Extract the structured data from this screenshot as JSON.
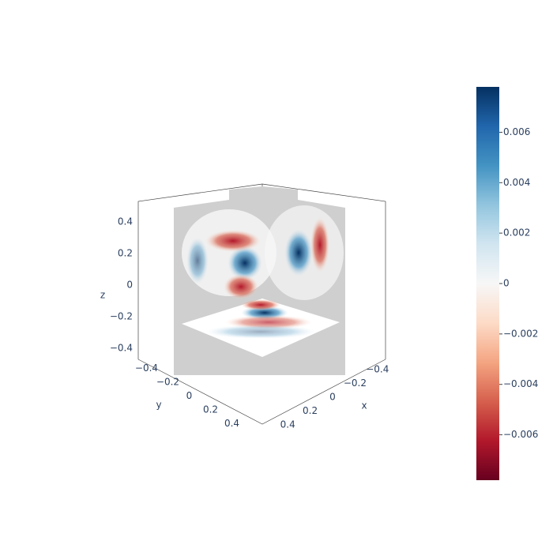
{
  "chart_data": {
    "type": "volume-slices",
    "x_label": "x",
    "y_label": "y",
    "z_label": "z",
    "xlim": [
      -0.5,
      0.5
    ],
    "ylim": [
      -0.5,
      0.5
    ],
    "zlim": [
      -0.5,
      0.5
    ],
    "xticks": [
      {
        "value": -0.4,
        "label": "−0.4"
      },
      {
        "value": -0.2,
        "label": "−0.2"
      },
      0,
      0.2,
      0.4
    ],
    "yticks": [
      {
        "value": -0.4,
        "label": "−0.4"
      },
      {
        "value": -0.2,
        "label": "−0.2"
      },
      0,
      0.2,
      0.4
    ],
    "zticks": [
      {
        "value": -0.4,
        "label": "−0.4"
      },
      {
        "value": -0.2,
        "label": "−0.2"
      },
      0,
      0.2,
      0.4
    ],
    "colorbar": {
      "range": [
        -0.0078,
        0.0078
      ],
      "ticks": [
        {
          "value": -0.006,
          "label": "−0.006"
        },
        {
          "value": -0.004,
          "label": "−0.004"
        },
        {
          "value": -0.002,
          "label": "−0.002"
        },
        0,
        0.002,
        0.004,
        0.006
      ],
      "colors": [
        "#67001f",
        "#b2182b",
        "#d6604d",
        "#f4a582",
        "#fddbc7",
        "#f7f7f7",
        "#d1e5f0",
        "#92c5de",
        "#4393c3",
        "#2166ac",
        "#053061"
      ]
    }
  }
}
